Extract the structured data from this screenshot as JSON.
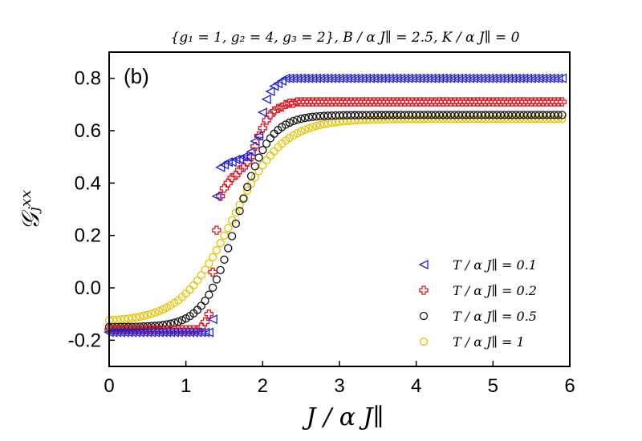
{
  "chart_data": {
    "type": "scatter",
    "title": "{g₁ = 1,  g₂ = 4,  g₃ = 2},  B / α J∥ = 2.5,  K / α J∥ = 0",
    "panel_label": "(b)",
    "xlabel": "J / α J∥",
    "ylabel": "𝒢ⱼˣˣ",
    "xlim": [
      0,
      6
    ],
    "ylim": [
      -0.3,
      0.9
    ],
    "xticks": [
      "0",
      "1",
      "2",
      "3",
      "4",
      "5",
      "6"
    ],
    "yticks": [
      "-0.2",
      "0.0",
      "0.2",
      "0.4",
      "0.6",
      "0.8"
    ],
    "xtick_values": [
      0,
      1,
      2,
      3,
      4,
      5,
      6
    ],
    "ytick_values": [
      -0.2,
      0.0,
      0.2,
      0.4,
      0.6,
      0.8
    ],
    "legend_position": "lower-right",
    "x_step": 0.05,
    "x_max": 5.9,
    "series": [
      {
        "name": "T / α J∥  =  0.1",
        "marker": "triangle-left",
        "color": "#1f1fd8",
        "low": -0.17,
        "high": 0.8,
        "model": "steps",
        "points": [
          [
            1.3,
            -0.17
          ],
          [
            1.35,
            -0.12
          ],
          [
            1.4,
            0.35
          ],
          [
            1.45,
            0.46
          ],
          [
            1.5,
            0.47
          ],
          [
            1.55,
            0.48
          ],
          [
            1.6,
            0.48
          ],
          [
            1.65,
            0.49
          ],
          [
            1.7,
            0.49
          ],
          [
            1.75,
            0.5
          ],
          [
            1.8,
            0.5
          ],
          [
            1.85,
            0.52
          ],
          [
            1.9,
            0.56
          ],
          [
            1.95,
            0.58
          ],
          [
            2.0,
            0.67
          ],
          [
            2.05,
            0.72
          ],
          [
            2.1,
            0.75
          ],
          [
            2.15,
            0.77
          ],
          [
            2.2,
            0.78
          ],
          [
            2.25,
            0.79
          ],
          [
            2.3,
            0.8
          ]
        ]
      },
      {
        "name": "T / α J∥  =  0.2",
        "marker": "cross",
        "color": "#e0141c",
        "low": -0.16,
        "high": 0.71,
        "model": "steps",
        "points": [
          [
            1.2,
            -0.15
          ],
          [
            1.25,
            -0.13
          ],
          [
            1.3,
            -0.1
          ],
          [
            1.35,
            0.06
          ],
          [
            1.4,
            0.22
          ],
          [
            1.45,
            0.35
          ],
          [
            1.5,
            0.38
          ],
          [
            1.55,
            0.4
          ],
          [
            1.6,
            0.42
          ],
          [
            1.65,
            0.43
          ],
          [
            1.7,
            0.45
          ],
          [
            1.75,
            0.46
          ],
          [
            1.8,
            0.48
          ],
          [
            1.85,
            0.5
          ],
          [
            1.9,
            0.54
          ],
          [
            1.95,
            0.58
          ],
          [
            2.0,
            0.61
          ],
          [
            2.05,
            0.64
          ],
          [
            2.1,
            0.66
          ],
          [
            2.15,
            0.675
          ],
          [
            2.2,
            0.685
          ],
          [
            2.25,
            0.69
          ],
          [
            2.3,
            0.7
          ],
          [
            2.35,
            0.705
          ],
          [
            2.45,
            0.71
          ]
        ]
      },
      {
        "name": "T / α J∥  =  0.5",
        "marker": "circle",
        "color": "#111111",
        "low": -0.15,
        "high": 0.66,
        "model": "sigmoid",
        "center": 1.66,
        "width": 0.21
      },
      {
        "name": "T / α J∥  =  1",
        "marker": "circle",
        "color": "#e6c200",
        "low": -0.13,
        "high": 0.645,
        "model": "sigmoid",
        "center": 1.6,
        "width": 0.33
      }
    ]
  }
}
